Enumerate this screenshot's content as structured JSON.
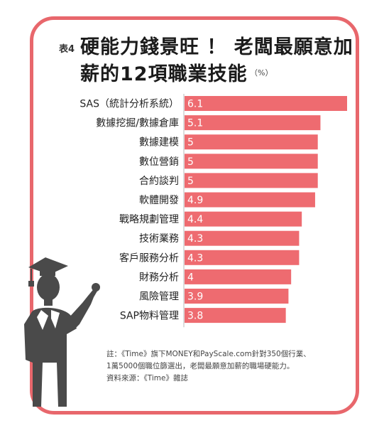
{
  "header": {
    "tag": "表4",
    "title_line1": "硬能力錢景旺 ！ 老闆最願意加",
    "title_line2": "薪的12項職業技能",
    "unit": "（%）"
  },
  "notes": {
    "line1": "註：《Time》旗下MONEY和PayScale.com針對350個行業、",
    "line2": "1萬5000個職位篩選出，老闆最願意加薪的職場硬能力。",
    "source": "資料來源：《Time》雜誌"
  },
  "colors": {
    "bar": "#ee6b70",
    "frame": "#e8676c",
    "figure": "#4a4a4a"
  },
  "chart_data": {
    "type": "bar",
    "orientation": "horizontal",
    "title": "硬能力錢景旺 ！ 老闆最願意加薪的12項職業技能",
    "unit": "%",
    "categories": [
      "SAS（統計分析系統）",
      "數據挖掘/數據倉庫",
      "數據建模",
      "數位營銷",
      "合約談判",
      "軟體開發",
      "戰略規劃管理",
      "技術業務",
      "客戶服務分析",
      "財務分析",
      "風險管理",
      "SAP物料管理"
    ],
    "values": [
      6.1,
      5.1,
      5,
      5,
      5,
      4.9,
      4.4,
      4.3,
      4.3,
      4,
      3.9,
      3.8
    ],
    "value_labels": [
      "6.1",
      "5.1",
      "5",
      "5",
      "5",
      "4.9",
      "4.4",
      "4.3",
      "4.3",
      "4",
      "3.9",
      "3.8"
    ],
    "xlim": [
      0,
      7.5
    ],
    "grid": false,
    "legend": "none"
  }
}
